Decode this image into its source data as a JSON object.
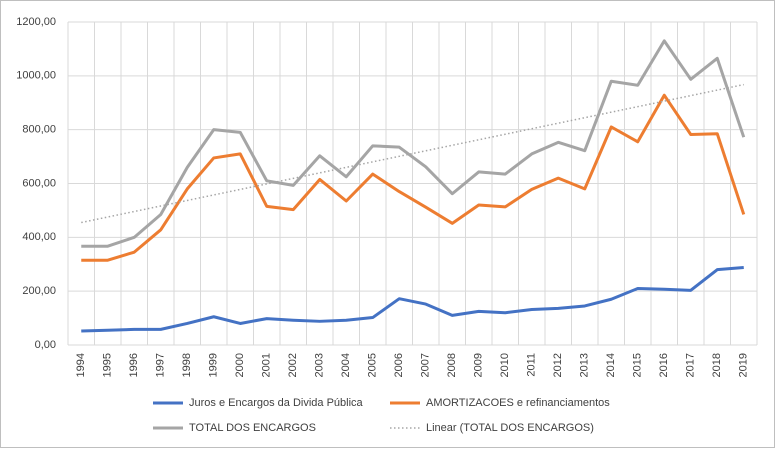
{
  "chart_data": {
    "type": "line",
    "categories": [
      "1994",
      "1995",
      "1996",
      "1997",
      "1998",
      "1999",
      "2000",
      "2001",
      "2002",
      "2003",
      "2004",
      "2005",
      "2006",
      "2007",
      "2008",
      "2009",
      "2010",
      "2011",
      "2012",
      "2013",
      "2014",
      "2015",
      "2016",
      "2017",
      "2018",
      "2019"
    ],
    "series": [
      {
        "name": "Juros e Encargos da Divida Pública",
        "color": "#4472c4",
        "line_style": "solid",
        "values": [
          52,
          55,
          58,
          58,
          80,
          105,
          80,
          98,
          92,
          88,
          92,
          102,
          172,
          152,
          110,
          125,
          120,
          132,
          136,
          145,
          170,
          210,
          207,
          203,
          280,
          288
        ]
      },
      {
        "name": "AMORTIZACOES e refinanciamentos",
        "color": "#ed7d31",
        "line_style": "solid",
        "values": [
          315,
          315,
          345,
          428,
          580,
          695,
          710,
          515,
          503,
          615,
          535,
          635,
          570,
          512,
          452,
          520,
          513,
          578,
          620,
          580,
          810,
          755,
          928,
          782,
          785,
          485
        ]
      },
      {
        "name": "TOTAL DOS ENCARGOS",
        "color": "#a5a5a5",
        "line_style": "solid",
        "values": [
          367,
          367,
          400,
          485,
          660,
          800,
          790,
          610,
          593,
          703,
          625,
          740,
          735,
          662,
          562,
          643,
          635,
          710,
          753,
          722,
          980,
          965,
          1130,
          987,
          1065,
          772
        ]
      },
      {
        "name": "Linear (TOTAL DOS ENCARGOS)",
        "color": "#a5a5a5",
        "line_style": "dotted",
        "values": [
          455,
          475.5,
          496,
          516.5,
          537,
          557.5,
          578,
          598.5,
          619,
          639.5,
          660,
          680.5,
          701,
          721.5,
          742,
          762.5,
          783,
          803.5,
          824,
          844.5,
          865,
          885.5,
          906,
          926.5,
          947,
          967.5
        ]
      }
    ],
    "ylim": [
      0,
      1200
    ],
    "yticks": [
      {
        "value": 0,
        "label": "0,00"
      },
      {
        "value": 200,
        "label": "200,00"
      },
      {
        "value": 400,
        "label": "400,00"
      },
      {
        "value": 600,
        "label": "600,00"
      },
      {
        "value": 800,
        "label": "800,00"
      },
      {
        "value": 1000,
        "label": "1000,00"
      },
      {
        "value": 1200,
        "label": "1200,00"
      }
    ],
    "grid": true,
    "legend": "bottom"
  }
}
